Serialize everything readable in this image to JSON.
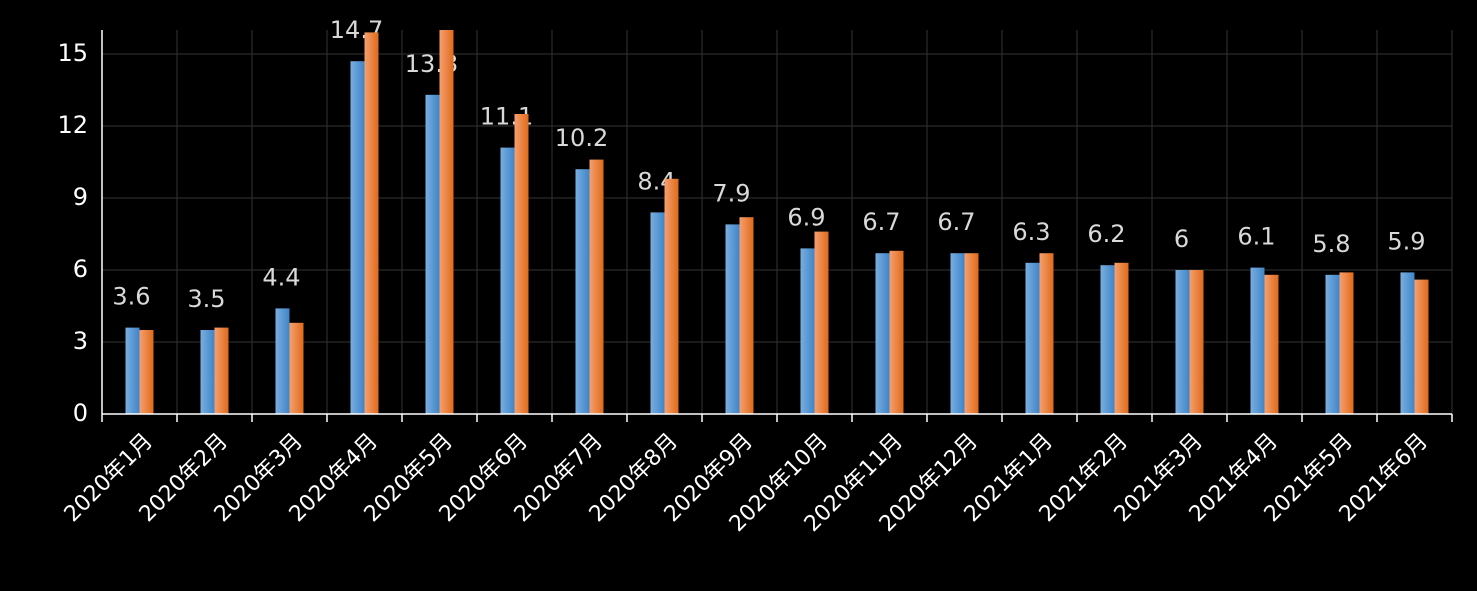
{
  "chart_data": {
    "type": "bar",
    "categories": [
      "2020年1月",
      "2020年2月",
      "2020年3月",
      "2020年4月",
      "2020年5月",
      "2020年6月",
      "2020年7月",
      "2020年8月",
      "2020年9月",
      "2020年10月",
      "2020年11月",
      "2020年12月",
      "2021年1月",
      "2021年2月",
      "2021年3月",
      "2021年4月",
      "2021年5月",
      "2021年6月"
    ],
    "series": [
      {
        "color": "#5b9bd5",
        "values": [
          3.6,
          3.5,
          4.4,
          14.7,
          13.3,
          11.1,
          10.2,
          8.4,
          7.9,
          6.9,
          6.7,
          6.7,
          6.3,
          6.2,
          6,
          6.1,
          5.8,
          5.9
        ],
        "show_labels": true
      },
      {
        "color": "#ed7d31",
        "values": [
          3.5,
          3.6,
          3.8,
          15.9,
          16,
          12.5,
          10.6,
          9.8,
          8.2,
          7.6,
          6.8,
          6.7,
          6.7,
          6.3,
          6,
          5.8,
          5.9,
          5.6
        ],
        "show_labels": false
      }
    ],
    "ylim": [
      0,
      16
    ],
    "yticks": [
      0,
      3,
      6,
      9,
      12,
      15
    ],
    "grid": true
  }
}
